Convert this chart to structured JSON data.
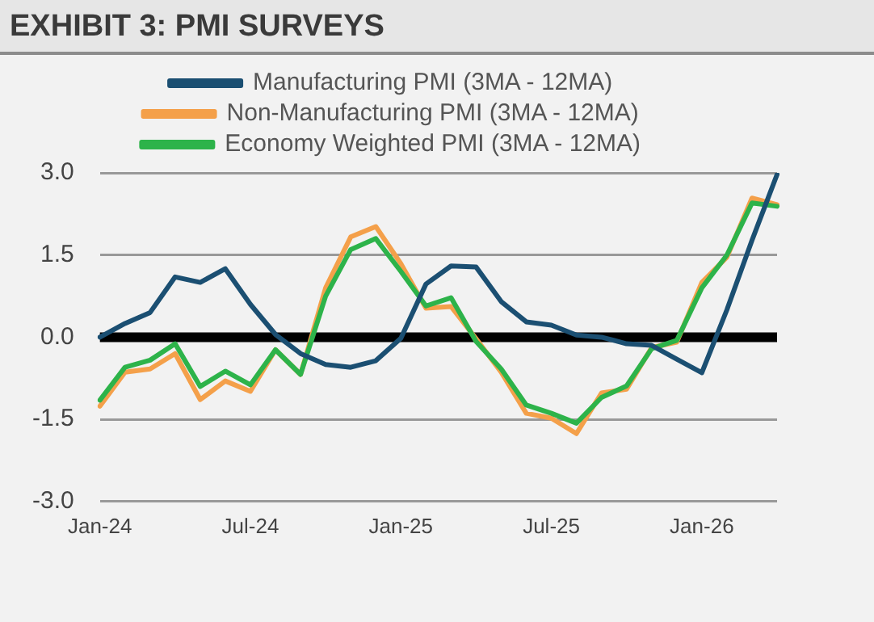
{
  "chart_data": {
    "type": "line",
    "title": "EXHIBIT 3: PMI SURVEYS",
    "categories": [
      "Jan-24",
      null,
      null,
      null,
      null,
      null,
      "Jul-24",
      null,
      null,
      null,
      null,
      null,
      "Jan-25",
      null,
      null,
      null,
      null,
      null,
      "Jul-25",
      null,
      null,
      null,
      null,
      null,
      "Jan-26",
      null,
      null,
      null
    ],
    "series": [
      {
        "name": "Manufacturing PMI (3MA - 12MA)",
        "color": "#1b4f72",
        "values": [
          0.0,
          0.25,
          0.45,
          1.1,
          1.0,
          1.25,
          0.6,
          0.05,
          -0.3,
          -0.5,
          -0.55,
          -0.43,
          -0.02,
          0.97,
          1.3,
          1.28,
          0.65,
          0.28,
          0.22,
          0.04,
          0.0,
          -0.12,
          -0.15,
          -0.4,
          -0.65,
          0.5,
          1.77,
          2.97
        ]
      },
      {
        "name": "Non-Manufacturing PMI (3MA - 12MA)",
        "color": "#f4a04a",
        "values": [
          -1.26,
          -0.64,
          -0.58,
          -0.3,
          -1.14,
          -0.8,
          -0.99,
          -0.23,
          -0.68,
          0.9,
          1.83,
          2.02,
          1.34,
          0.53,
          0.56,
          -0.03,
          -0.64,
          -1.39,
          -1.48,
          -1.76,
          -1.02,
          -0.95,
          -0.19,
          -0.09,
          1.0,
          1.46,
          2.54,
          2.42
        ]
      },
      {
        "name": "Economy Weighted PMI (3MA - 12MA)",
        "color": "#2db34a",
        "values": [
          -1.15,
          -0.55,
          -0.42,
          -0.12,
          -0.9,
          -0.62,
          -0.87,
          -0.23,
          -0.68,
          0.75,
          1.6,
          1.8,
          1.2,
          0.57,
          0.72,
          -0.08,
          -0.58,
          -1.24,
          -1.39,
          -1.57,
          -1.1,
          -0.89,
          -0.21,
          -0.06,
          0.9,
          1.5,
          2.45,
          2.39
        ]
      }
    ],
    "ylim": [
      -3,
      3
    ],
    "yticks": [
      {
        "value": 3,
        "label": "3.0"
      },
      {
        "value": 1.5,
        "label": "1.5"
      },
      {
        "value": 0,
        "label": "0.0"
      },
      {
        "value": -1.5,
        "label": "-1.5"
      },
      {
        "value": -3,
        "label": "-3.0"
      }
    ],
    "grid": "y",
    "legend": "top",
    "marker": "none",
    "line_style": "solid",
    "ref_lines": [
      {
        "axis": "y",
        "value": 0,
        "color": "#000000"
      }
    ]
  }
}
